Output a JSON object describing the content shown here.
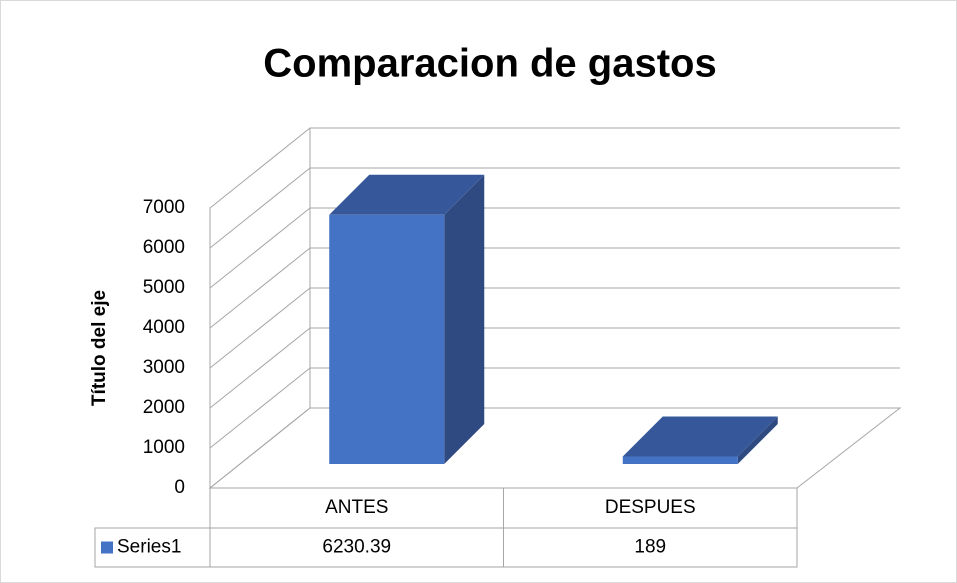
{
  "chart_data": {
    "type": "bar3d",
    "title": "Comparacion de gastos",
    "y_axis_label": "Título del eje",
    "categories": [
      "ANTES",
      "DESPUES"
    ],
    "series": [
      {
        "name": "Series1",
        "color": "#4472c4",
        "values": [
          6230.39,
          189
        ]
      }
    ],
    "ylim": [
      0,
      7000
    ],
    "yticks": [
      0,
      1000,
      2000,
      3000,
      4000,
      5000,
      6000,
      7000
    ],
    "grid": true,
    "legend": "data-table"
  }
}
